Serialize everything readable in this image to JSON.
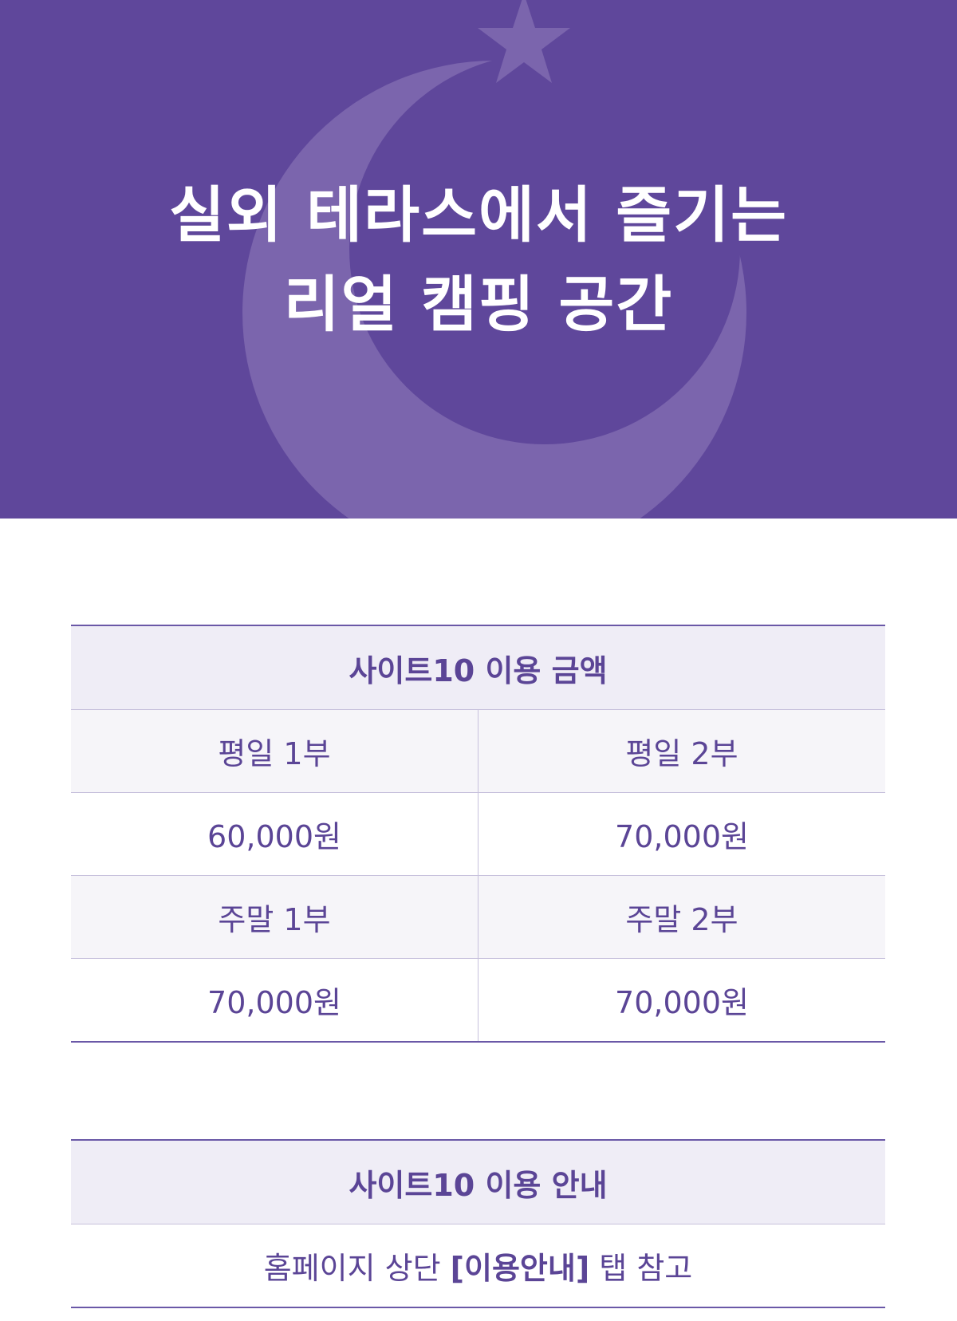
{
  "banner": {
    "title_line1": "실외 테라스에서 즐기는",
    "title_line2": "리얼 캠핑 공간",
    "background_color": "#5f479b",
    "decoration_icons": [
      "crescent-moon-icon",
      "star-icon"
    ]
  },
  "price_table": {
    "title": "사이트10 이용 금액",
    "rows": [
      {
        "left": "평일 1부",
        "right": "평일 2부"
      },
      {
        "left": "60,000원",
        "right": "70,000원"
      },
      {
        "left": "주말 1부",
        "right": "주말 2부"
      },
      {
        "left": "70,000원",
        "right": "70,000원"
      }
    ]
  },
  "info_table": {
    "title": "사이트10 이용 안내",
    "text_before": "홈페이지 상단 ",
    "text_bold": "[이용안내]",
    "text_after": " 탭 참고"
  },
  "colors": {
    "accent": "#5b4596",
    "header_bg": "#efedf6",
    "label_bg": "#f6f5f9"
  }
}
